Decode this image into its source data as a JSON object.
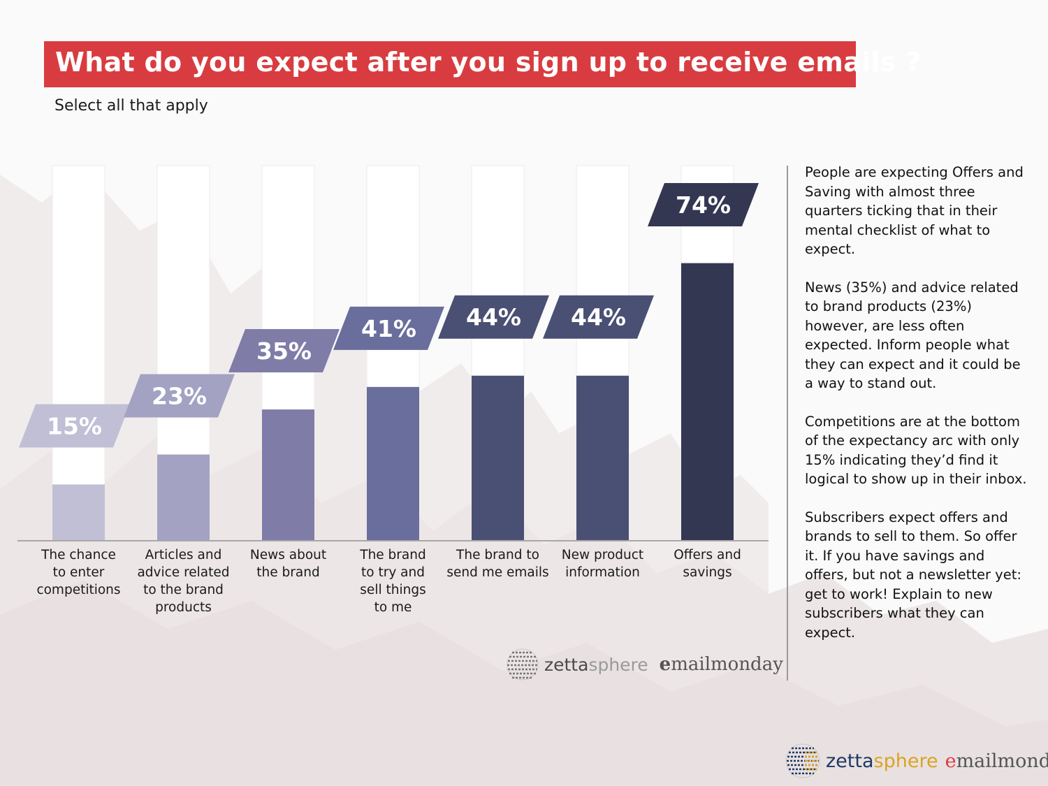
{
  "title": "What do you expect after you sign up to receive emails ?",
  "subtitle": "Select all that apply",
  "chart_data": {
    "type": "bar",
    "categories": [
      "The chance to enter competitions",
      "Articles and advice related to the brand products",
      "News about the brand",
      "The brand to try and sell things to me",
      "The brand to send me emails",
      "New product information",
      "Offers and savings"
    ],
    "category_lines": [
      [
        "The chance",
        "to enter",
        "competitions"
      ],
      [
        "Articles and",
        "advice related",
        "to the brand",
        "products"
      ],
      [
        "News about",
        "the brand"
      ],
      [
        "The brand",
        "to try and",
        "sell things",
        "to me"
      ],
      [
        "The brand to",
        "send me emails"
      ],
      [
        "New product",
        "information"
      ],
      [
        "Offers and",
        "savings"
      ]
    ],
    "values": [
      15,
      23,
      35,
      41,
      44,
      44,
      74
    ],
    "value_labels": [
      "15%",
      "23%",
      "35%",
      "41%",
      "44%",
      "44%",
      "74%"
    ],
    "colors": [
      "#c0bfd6",
      "#a3a2c3",
      "#807ca8",
      "#6a6e9c",
      "#4a5073",
      "#4a5073",
      "#343752"
    ],
    "unit": "%",
    "ylim": [
      0,
      100
    ],
    "title": "What do you expect after you sign up to receive emails ?",
    "xlabel": "",
    "ylabel": "",
    "grid": false
  },
  "commentary": [
    "People are expecting Offers and Saving with almost three quarters ticking that in their mental checklist of what to expect.",
    "News (35%) and advice related to brand products (23%) however, are less often expected. Inform people what they can expect and it could be a way to stand out.",
    "Competitions are at the bottom of the expectancy arc with only 15% indicating they’d find it logical to show up in their inbox.",
    "Subscribers expect offers and brands to sell to them. So offer it. If you have savings and offers, but not a newsletter yet: get to work! Explain to new subscribers what they can  expect."
  ],
  "logos": {
    "zetta": "zetta",
    "sphere": "sphere",
    "emailmonday_e": "e",
    "emailmonday_rest": "mailmonday"
  }
}
